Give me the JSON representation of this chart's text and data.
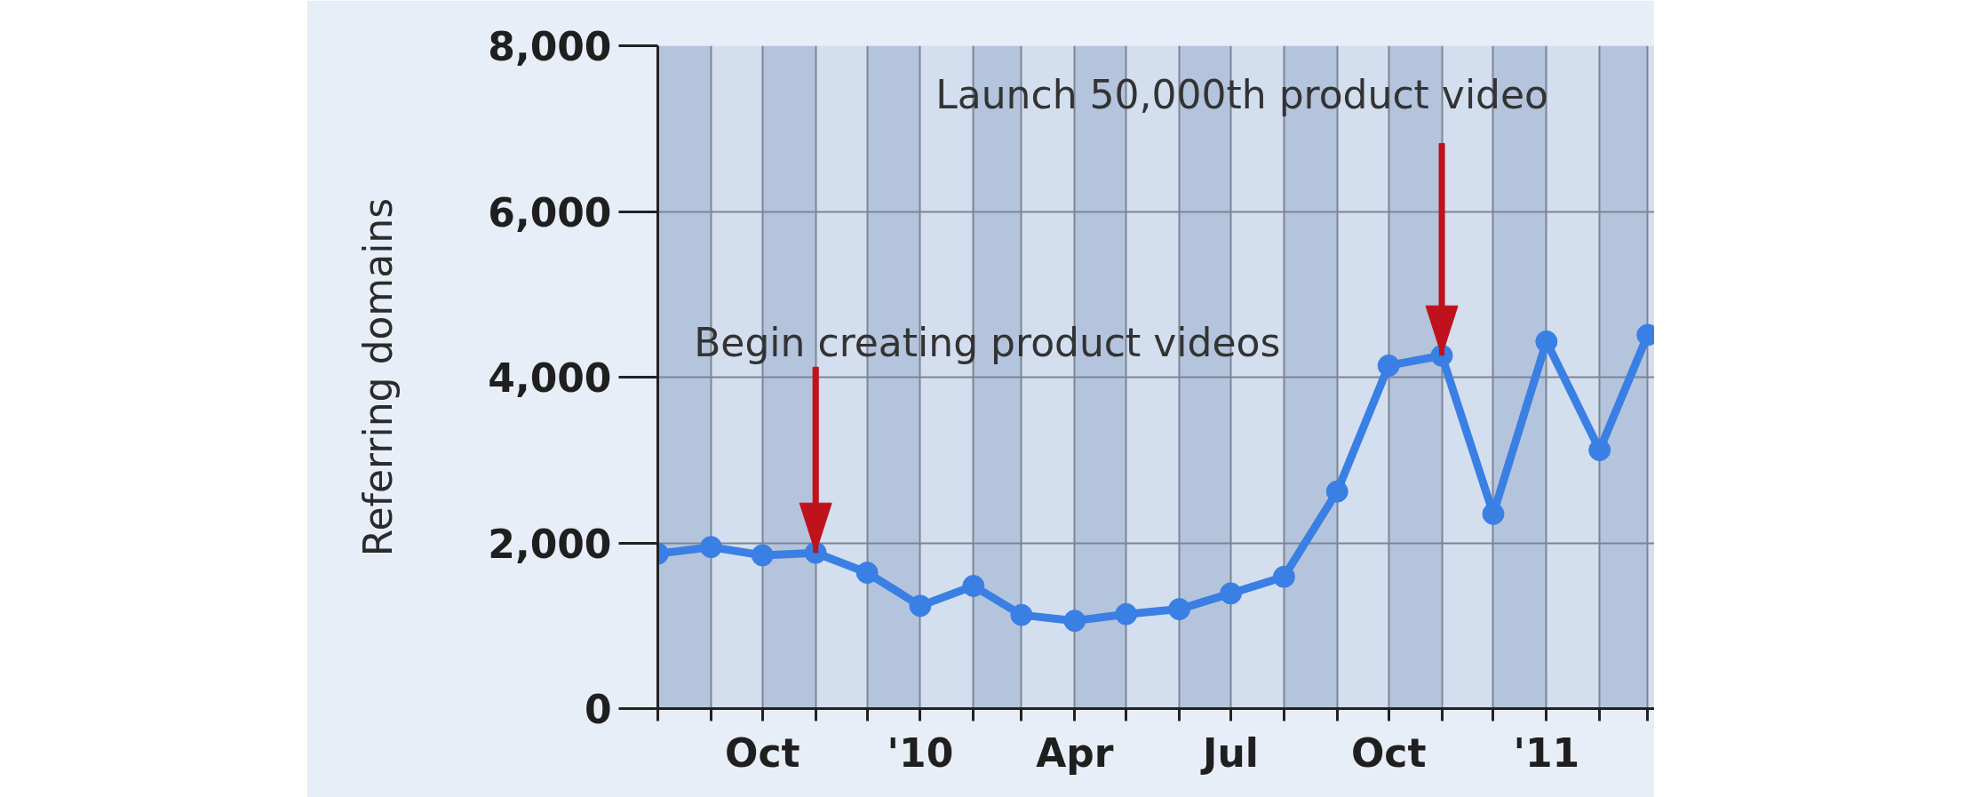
{
  "chart_data": {
    "type": "line",
    "ylabel": "Referring domains",
    "x": [
      "2009-08",
      "2009-09",
      "2009-10",
      "2009-11",
      "2009-12",
      "2010-01",
      "2010-02",
      "2010-03",
      "2010-04",
      "2010-05",
      "2010-06",
      "2010-07",
      "2010-08",
      "2010-09",
      "2010-10",
      "2010-11",
      "2010-12",
      "2011-01",
      "2011-02",
      "2011-03"
    ],
    "series": [
      {
        "color": "#3a7fe3",
        "values": [
          1870,
          1950,
          1850,
          1880,
          1640,
          1240,
          1480,
          1130,
          1060,
          1140,
          1200,
          1390,
          1590,
          2620,
          4140,
          4260,
          2350,
          4430,
          3120,
          4510
        ]
      }
    ],
    "xlim": [
      "2009-08",
      "2011-03-05"
    ],
    "xticks": [
      {
        "value": "2009-08",
        "label": null
      },
      {
        "value": "2009-09",
        "label": null
      },
      {
        "value": "2009-10",
        "label": "Oct"
      },
      {
        "value": "2009-11",
        "label": null
      },
      {
        "value": "2009-12",
        "label": null
      },
      {
        "value": "2010-01",
        "label": "'10"
      },
      {
        "value": "2010-02",
        "label": null
      },
      {
        "value": "2010-03",
        "label": null
      },
      {
        "value": "2010-04",
        "label": "Apr"
      },
      {
        "value": "2010-05",
        "label": null
      },
      {
        "value": "2010-06",
        "label": null
      },
      {
        "value": "2010-07",
        "label": "Jul"
      },
      {
        "value": "2010-08",
        "label": null
      },
      {
        "value": "2010-09",
        "label": null
      },
      {
        "value": "2010-10",
        "label": "Oct"
      },
      {
        "value": "2010-11",
        "label": null
      },
      {
        "value": "2010-12",
        "label": null
      },
      {
        "value": "2011-01",
        "label": "'11"
      },
      {
        "value": "2011-02",
        "label": null
      },
      {
        "value": "2011-03",
        "label": null
      }
    ],
    "ylim": [
      0,
      8000
    ],
    "yticks": [
      0,
      {
        "value": 2000,
        "label": "2,000"
      },
      {
        "value": 4000,
        "label": "4,000"
      },
      {
        "value": 6000,
        "label": "6,000"
      },
      {
        "value": 8000,
        "label": "8,000"
      }
    ],
    "grid": true,
    "marker": "circle",
    "line_style": "solid",
    "bands": [
      {
        "axis": "x",
        "from": "2009-08",
        "to": "2009-09",
        "color": "#b4c4dd"
      },
      {
        "axis": "x",
        "from": "2009-10",
        "to": "2009-11",
        "color": "#b4c4dd"
      },
      {
        "axis": "x",
        "from": "2009-12",
        "to": "2010-01",
        "color": "#b4c4dd"
      },
      {
        "axis": "x",
        "from": "2010-02",
        "to": "2010-03",
        "color": "#b4c4dd"
      },
      {
        "axis": "x",
        "from": "2010-04",
        "to": "2010-05",
        "color": "#b4c4dd"
      },
      {
        "axis": "x",
        "from": "2010-06",
        "to": "2010-07",
        "color": "#b4c4dd"
      },
      {
        "axis": "x",
        "from": "2010-08",
        "to": "2010-09",
        "color": "#b4c4dd"
      },
      {
        "axis": "x",
        "from": "2010-10",
        "to": "2010-11",
        "color": "#b4c4dd"
      },
      {
        "axis": "x",
        "from": "2010-12",
        "to": "2011-01",
        "color": "#b4c4dd"
      },
      {
        "axis": "x",
        "from": "2011-02",
        "to": "2011-03",
        "color": "#b4c4dd"
      }
    ],
    "annotations": [
      {
        "text": "Begin creating product videos",
        "x": "2009-11",
        "y": 1880
      },
      {
        "text": "Launch 50,000th product video",
        "x": "2010-11",
        "y": 4260
      }
    ]
  }
}
